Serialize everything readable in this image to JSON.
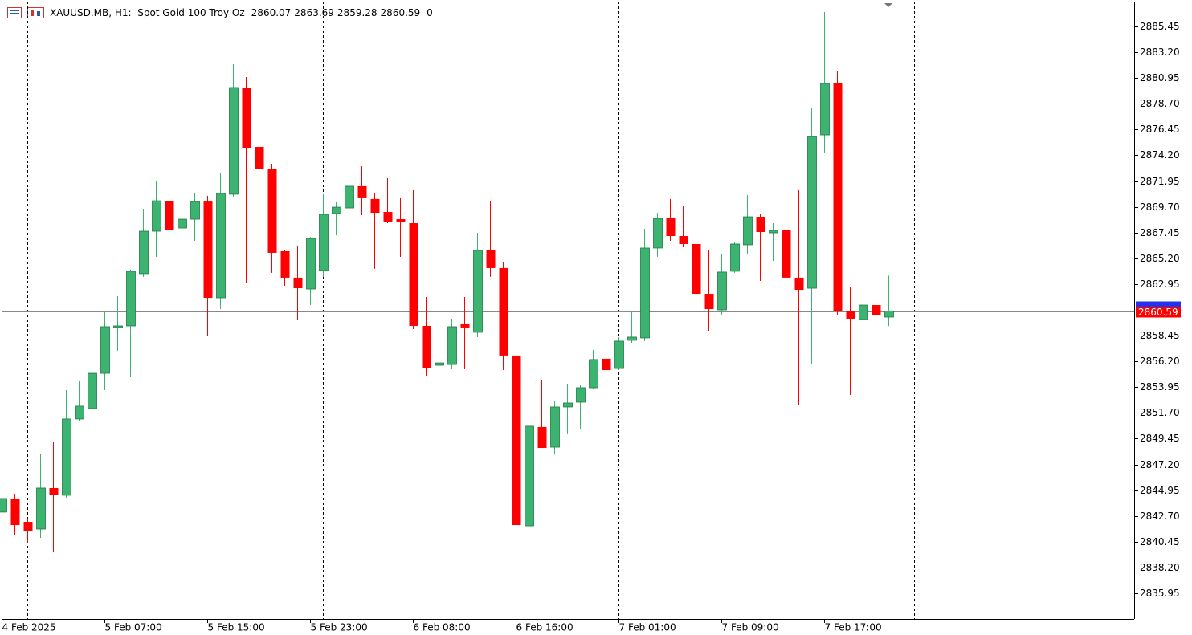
{
  "chart_data": {
    "type": "candlestick",
    "title": "XAUUSD.MB, H1:  Spot Gold 100 Troy Oz",
    "header_value": 0,
    "categories": [
      "4 Feb 2025",
      null,
      null,
      null,
      null,
      null,
      null,
      null,
      "5 Feb 07:00",
      null,
      null,
      null,
      null,
      null,
      null,
      null,
      "5 Feb 15:00",
      null,
      null,
      null,
      null,
      null,
      null,
      null,
      "5 Feb 23:00",
      null,
      null,
      null,
      null,
      null,
      null,
      null,
      "6 Feb 08:00",
      null,
      null,
      null,
      null,
      null,
      null,
      null,
      "6 Feb 16:00",
      null,
      null,
      null,
      null,
      null,
      null,
      null,
      "7 Feb 01:00",
      null,
      null,
      null,
      null,
      null,
      null,
      null,
      "7 Feb 09:00",
      null,
      null,
      null,
      null,
      null,
      null,
      null,
      "7 Feb 17:00",
      null,
      null,
      null,
      null,
      null
    ],
    "open": [
      2843.04,
      2844.16,
      2842.19,
      2841.56,
      2845.14,
      2844.51,
      2851.17,
      2852.08,
      2855.16,
      2859.16,
      2859.3,
      2863.86,
      2867.57,
      2870.23,
      2867.85,
      2868.62,
      2870.16,
      2861.75,
      2870.8,
      2880.12,
      2874.93,
      2872.97,
      2865.82,
      2863.51,
      2862.52,
      2864.14,
      2869.11,
      2869.6,
      2871.5,
      2870.38,
      2869.25,
      2868.62,
      2868.27,
      2859.3,
      2855.86,
      2855.93,
      2859.44,
      2858.74,
      2865.89,
      2864.35,
      2856.71,
      2841.84,
      2850.47,
      2848.71,
      2852.22,
      2852.64,
      2853.9,
      2856.43,
      2855.58,
      2858.04,
      2858.25,
      2866.1,
      2868.69,
      2867.15,
      2866.45,
      2862.1,
      2860.7,
      2864.07,
      2866.38,
      2868.83,
      2867.43,
      2867.64,
      2863.51,
      2862.59,
      2875.98,
      2880.54,
      2860.56,
      2859.86,
      2861.12,
      2860.07
    ],
    "high": [
      2844.51,
      2844.65,
      2842.48,
      2848.15,
      2849.2,
      2853.69,
      2854.53,
      2858.04,
      2860.63,
      2861.89,
      2864.21,
      2869.53,
      2871.99,
      2876.89,
      2870.23,
      2870.94,
      2870.66,
      2872.69,
      2882.15,
      2881.03,
      2876.54,
      2873.46,
      2865.96,
      2866.24,
      2867.08,
      2870.8,
      2870.09,
      2871.78,
      2873.25,
      2870.94,
      2872.2,
      2870.45,
      2871.15,
      2861.82,
      2858.53,
      2859.93,
      2861.82,
      2867.43,
      2870.23,
      2864.91,
      2859.72,
      2853.06,
      2854.6,
      2852.71,
      2854.25,
      2854.18,
      2857.2,
      2857.13,
      2858.32,
      2860.49,
      2867.78,
      2869.18,
      2870.38,
      2869.74,
      2867.01,
      2865.96,
      2865.54,
      2866.59,
      2870.73,
      2869.11,
      2868.27,
      2867.99,
      2871.15,
      2878.3,
      2886.71,
      2881.52,
      2862.66,
      2865.12,
      2863.08,
      2863.69
    ],
    "low": [
      2842.9,
      2841.07,
      2840.37,
      2840.79,
      2839.6,
      2844.3,
      2850.96,
      2851.87,
      2853.69,
      2857.13,
      2854.81,
      2863.58,
      2865.33,
      2865.82,
      2864.63,
      2866.73,
      2858.46,
      2860.77,
      2870.59,
      2863.01,
      2871.29,
      2863.93,
      2862.8,
      2859.86,
      2861.12,
      2863.58,
      2867.22,
      2863.58,
      2868.97,
      2864.28,
      2868.27,
      2865.33,
      2859.02,
      2854.95,
      2848.64,
      2855.51,
      2855.51,
      2858.32,
      2863.58,
      2855.44,
      2841.14,
      2834.13,
      2848.64,
      2848.08,
      2849.91,
      2850.26,
      2853.76,
      2855.16,
      2855.44,
      2857.83,
      2857.97,
      2865.33,
      2866.73,
      2866.17,
      2861.89,
      2858.88,
      2860.21,
      2863.93,
      2865.54,
      2863.22,
      2864.98,
      2863.44,
      2852.36,
      2856.0,
      2874.44,
      2860.28,
      2853.27,
      2859.72,
      2858.88,
      2859.28
    ],
    "close": [
      2844.23,
      2841.91,
      2841.35,
      2845.14,
      2844.51,
      2851.17,
      2852.29,
      2855.16,
      2859.23,
      2859.3,
      2864.07,
      2867.57,
      2870.23,
      2867.64,
      2868.62,
      2870.16,
      2861.75,
      2870.87,
      2880.12,
      2874.86,
      2872.97,
      2865.68,
      2863.51,
      2862.59,
      2866.94,
      2869.04,
      2869.67,
      2871.5,
      2870.45,
      2869.18,
      2868.41,
      2868.34,
      2859.3,
      2855.65,
      2856.07,
      2859.23,
      2859.16,
      2865.89,
      2864.35,
      2856.71,
      2841.91,
      2850.54,
      2848.64,
      2852.22,
      2852.57,
      2853.9,
      2856.36,
      2855.44,
      2857.97,
      2858.32,
      2866.1,
      2868.69,
      2867.15,
      2866.45,
      2862.1,
      2860.77,
      2864.0,
      2866.45,
      2868.83,
      2867.5,
      2867.64,
      2863.51,
      2862.45,
      2875.84,
      2880.47,
      2860.56,
      2859.93,
      2861.12,
      2860.21,
      2860.59
    ],
    "up_color": "#3cb371",
    "down_color": "#ff0000",
    "ylim": [
      2833.71,
      2887.62
    ],
    "yticks": [
      2885.45,
      {
        "value": 2883.2,
        "label": "2883.20"
      },
      2880.95,
      {
        "value": 2878.7,
        "label": "2878.70"
      },
      2876.45,
      {
        "value": 2874.2,
        "label": "2874.20"
      },
      2871.95,
      {
        "value": 2869.7,
        "label": "2869.70"
      },
      2867.45,
      {
        "value": 2865.2,
        "label": "2865.20"
      },
      2862.95,
      2858.45,
      {
        "value": 2856.2,
        "label": "2856.20"
      },
      2853.95,
      {
        "value": 2851.7,
        "label": "2851.70"
      },
      2849.45,
      {
        "value": 2847.2,
        "label": "2847.20"
      },
      2844.95,
      {
        "value": 2842.7,
        "label": "2842.70"
      },
      2840.45,
      {
        "value": 2838.2,
        "label": "2838.20"
      },
      2835.95
    ],
    "bid": 2860.59,
    "ask": 2860.98,
    "bid_color": "#ff0000",
    "ask_color": "#2233ee"
  }
}
